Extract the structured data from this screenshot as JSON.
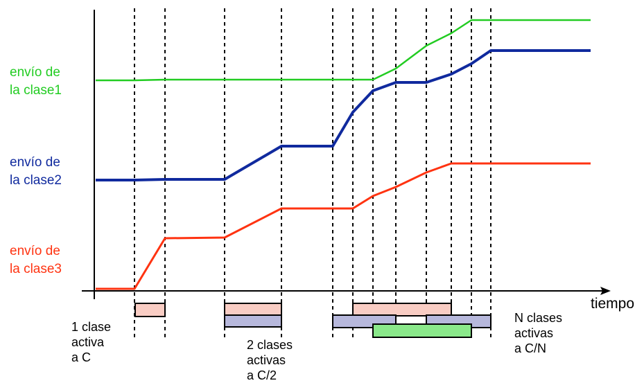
{
  "colors": {
    "class1": "#22cc22",
    "class2": "#102a9e",
    "class3": "#ff3311",
    "rect1": "#f9cdc4",
    "rect2": "#b7b8dc",
    "rect3": "#8ae88a"
  },
  "series_labels": {
    "class1": [
      "envío de",
      "la clase1"
    ],
    "class2": [
      "envío de",
      "la clase2"
    ],
    "class3": [
      "envío de",
      "la clase3"
    ]
  },
  "axis_label": "tiempo",
  "annotations": {
    "one": [
      "1 clase",
      "activa",
      "a C"
    ],
    "two": [
      "2 clases",
      "activas",
      "a C/2"
    ],
    "n": [
      "N clases",
      "activas",
      "a C/N"
    ]
  }
}
